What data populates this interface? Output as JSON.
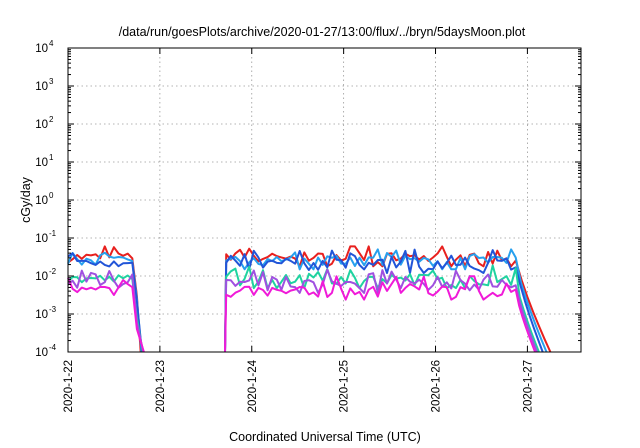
{
  "chart_data": {
    "type": "line",
    "title": "/data/run/goesPlots/archive/2020-01-27/13:00/flux/../bryn/5daysMoon.plot",
    "xlabel": "Coordinated Universal Time (UTC)",
    "ylabel": "cGy/day",
    "x_tick_labels": [
      "2020-1-22",
      "2020-1-23",
      "2020-1-24",
      "2020-1-25",
      "2020-1-26",
      "2020-1-27"
    ],
    "xlim": [
      "2020-01-22",
      "2020-01-27T14:00"
    ],
    "y_scale": "log",
    "ylim": [
      0.0001,
      10000
    ],
    "y_ticks": [
      {
        "base": "10",
        "exp": "4"
      },
      {
        "base": "10",
        "exp": "3"
      },
      {
        "base": "10",
        "exp": "2"
      },
      {
        "base": "10",
        "exp": "1"
      },
      {
        "base": "10",
        "exp": "0"
      },
      {
        "base": "10",
        "exp": "-1"
      },
      {
        "base": "10",
        "exp": "-2"
      },
      {
        "base": "10",
        "exp": "-3"
      },
      {
        "base": "10",
        "exp": "-4"
      }
    ],
    "grid": true,
    "legend": "none",
    "data_gap": [
      "2020-01-22T17:00",
      "2020-01-23T17:00"
    ],
    "series": [
      {
        "color": "#e8201e",
        "level": 0.03,
        "spike_max": 0.06,
        "decay_end": "2020-01-27T06:00"
      },
      {
        "color": "#27a0ee",
        "level": 0.025,
        "spike_max": 0.05,
        "decay_end": "2020-01-27T05:00"
      },
      {
        "color": "#2255d8",
        "level": 0.02,
        "spike_max": 0.05,
        "decay_end": "2020-01-27T04:00"
      },
      {
        "color": "#1fd3a0",
        "level": 0.008,
        "spike_max": 0.02,
        "decay_end": "2020-01-27T03:00"
      },
      {
        "color": "#a050e0",
        "level": 0.006,
        "spike_max": 0.015,
        "decay_end": "2020-01-27T02:30"
      },
      {
        "color": "#f01ad8",
        "level": 0.004,
        "spike_max": 0.012,
        "decay_end": "2020-01-27T02:00"
      }
    ]
  }
}
